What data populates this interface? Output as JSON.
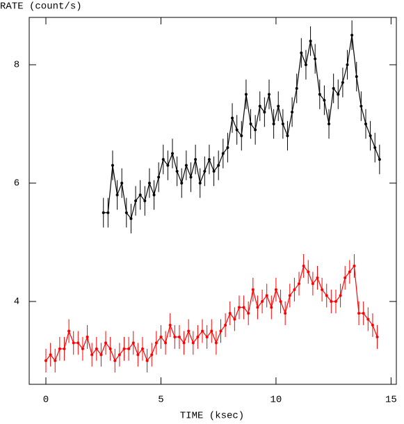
{
  "chart_data": {
    "type": "errorline",
    "y_label": "RATE (count/s)",
    "x_label": "TIME (ksec)",
    "xlim": [
      -0.725,
      15.23
    ],
    "ylim": [
      2.6,
      8.8
    ],
    "xticks": [
      0,
      5,
      10,
      15
    ],
    "yticks": [
      4,
      6,
      8
    ],
    "series": [
      {
        "color": "#000000",
        "error": 0.25,
        "x": [
          2.5,
          2.7,
          2.9,
          3.1,
          3.3,
          3.5,
          3.7,
          3.9,
          4.1,
          4.3,
          4.5,
          4.7,
          4.9,
          5.1,
          5.3,
          5.5,
          5.7,
          5.9,
          6.1,
          6.3,
          6.5,
          6.7,
          6.9,
          7.1,
          7.3,
          7.5,
          7.7,
          7.9,
          8.1,
          8.3,
          8.5,
          8.7,
          8.9,
          9.1,
          9.3,
          9.5,
          9.7,
          9.9,
          10.1,
          10.3,
          10.5,
          10.7,
          10.9,
          11.1,
          11.3,
          11.5,
          11.7,
          11.9,
          12.1,
          12.3,
          12.5,
          12.7,
          12.9,
          13.1,
          13.3,
          13.5,
          13.7,
          13.9,
          14.1,
          14.3,
          14.5
        ],
        "values": [
          5.5,
          5.5,
          6.3,
          5.8,
          6.0,
          5.5,
          5.4,
          5.7,
          5.8,
          5.7,
          6.0,
          5.8,
          6.1,
          6.4,
          6.3,
          6.5,
          6.2,
          6.0,
          6.3,
          6.1,
          6.4,
          6.0,
          6.2,
          6.4,
          6.2,
          6.3,
          6.5,
          6.6,
          7.1,
          6.9,
          6.8,
          7.5,
          7.0,
          6.9,
          7.3,
          7.2,
          7.5,
          7.0,
          7.3,
          7.0,
          6.8,
          7.2,
          7.6,
          8.2,
          8.0,
          8.4,
          8.1,
          7.5,
          7.4,
          7.0,
          7.6,
          7.5,
          7.7,
          8.0,
          8.5,
          7.8,
          7.3,
          7.0,
          6.8,
          6.6,
          6.4
        ]
      },
      {
        "color": "#ff0000",
        "error": 0.2,
        "x": [
          0,
          0.2,
          0.4,
          0.6,
          0.8,
          1.0,
          1.2,
          1.4,
          1.6,
          1.8,
          2.0,
          2.2,
          2.4,
          2.6,
          2.8,
          3.0,
          3.2,
          3.4,
          3.6,
          3.8,
          4.0,
          4.2,
          4.4,
          4.6,
          4.8,
          5.0,
          5.2,
          5.4,
          5.6,
          5.8,
          6.0,
          6.2,
          6.4,
          6.6,
          6.8,
          7.0,
          7.2,
          7.4,
          7.6,
          7.8,
          8.0,
          8.2,
          8.4,
          8.6,
          8.8,
          9.0,
          9.2,
          9.4,
          9.6,
          9.8,
          10.0,
          10.2,
          10.4,
          10.6,
          10.8,
          11.0,
          11.2,
          11.4,
          11.6,
          11.8,
          12.0,
          12.2,
          12.4,
          12.6,
          12.8,
          13.0,
          13.2,
          13.4,
          13.6,
          13.8,
          14.0,
          14.2,
          14.4
        ],
        "values": [
          3.0,
          3.1,
          3.0,
          3.2,
          3.2,
          3.5,
          3.3,
          3.3,
          3.2,
          3.4,
          3.1,
          3.2,
          3.1,
          3.3,
          3.2,
          3.0,
          3.1,
          3.2,
          3.2,
          3.3,
          3.1,
          3.2,
          3.0,
          3.1,
          3.3,
          3.4,
          3.3,
          3.6,
          3.4,
          3.4,
          3.3,
          3.5,
          3.3,
          3.4,
          3.5,
          3.4,
          3.5,
          3.3,
          3.5,
          3.6,
          3.8,
          3.7,
          3.9,
          3.9,
          3.8,
          4.2,
          3.9,
          4.0,
          4.1,
          3.9,
          4.2,
          4.0,
          3.8,
          4.1,
          4.2,
          4.3,
          4.6,
          4.5,
          4.3,
          4.4,
          4.2,
          4.1,
          4.0,
          4.0,
          4.1,
          4.4,
          4.5,
          4.6,
          3.8,
          3.8,
          3.7,
          3.6,
          3.4
        ]
      }
    ]
  }
}
